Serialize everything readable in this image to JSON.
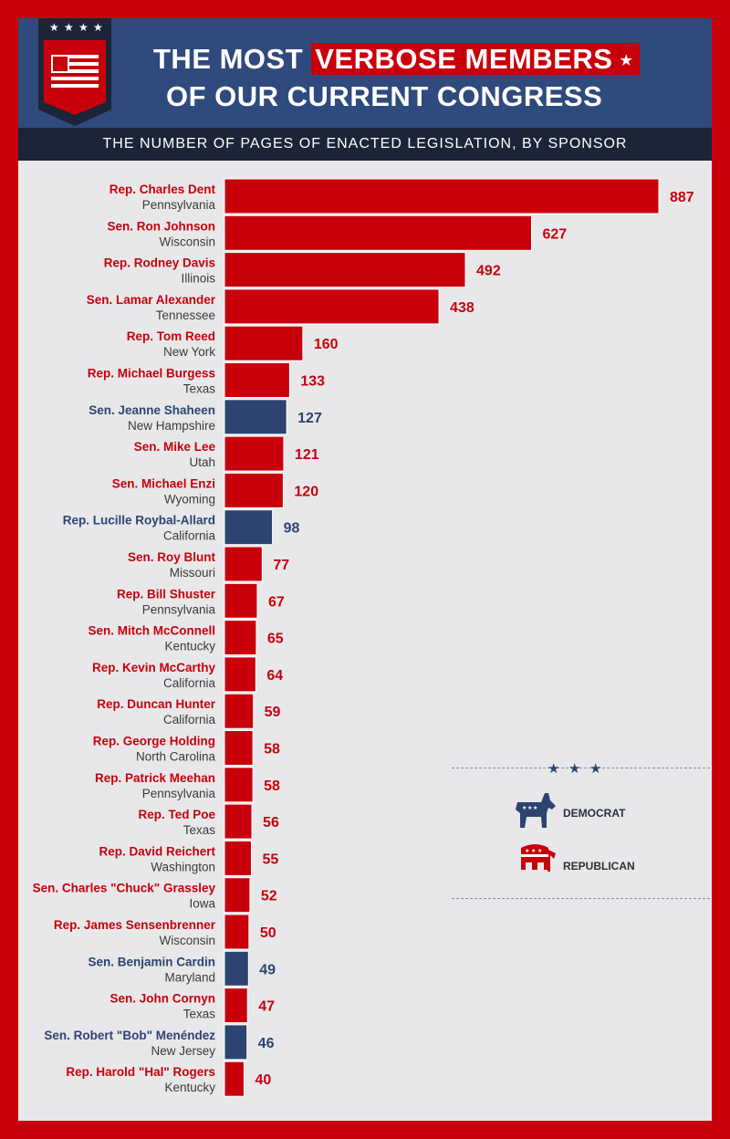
{
  "header": {
    "title_part1": "THE MOST",
    "title_highlight": "VERBOSE MEMBERS",
    "title_line2": "OF OUR CURRENT CONGRESS",
    "subtitle": "THE NUMBER OF PAGES OF ENACTED LEGISLATION, BY SPONSOR"
  },
  "legend": {
    "democrat_label": "DEMOCRAT",
    "republican_label": "REPUBLICAN",
    "democrat_icon": "donkey-icon",
    "republican_icon": "elephant-icon"
  },
  "colors": {
    "republican": "#c8000b",
    "democrat": "#2d4470",
    "background": "#e8e8ea",
    "header": "#2f4a7c"
  },
  "chart_data": {
    "type": "bar",
    "orientation": "horizontal",
    "title": "THE MOST VERBOSE MEMBERS OF OUR CURRENT CONGRESS",
    "subtitle": "THE NUMBER OF PAGES OF ENACTED LEGISLATION, BY SPONSOR",
    "xlim": [
      0,
      887
    ],
    "grid": false,
    "legend_position": "right",
    "categories": [
      {
        "name": "Rep. Charles Dent",
        "state": "Pennsylvania",
        "party": "republican"
      },
      {
        "name": "Sen. Ron Johnson",
        "state": "Wisconsin",
        "party": "republican"
      },
      {
        "name": "Rep. Rodney Davis",
        "state": "Illinois",
        "party": "republican"
      },
      {
        "name": "Sen. Lamar Alexander",
        "state": "Tennessee",
        "party": "republican"
      },
      {
        "name": "Rep. Tom Reed",
        "state": "New York",
        "party": "republican"
      },
      {
        "name": "Rep. Michael Burgess",
        "state": "Texas",
        "party": "republican"
      },
      {
        "name": "Sen. Jeanne Shaheen",
        "state": "New Hampshire",
        "party": "democrat"
      },
      {
        "name": "Sen. Mike Lee",
        "state": "Utah",
        "party": "republican"
      },
      {
        "name": "Sen. Michael Enzi",
        "state": "Wyoming",
        "party": "republican"
      },
      {
        "name": "Rep. Lucille Roybal-Allard",
        "state": "California",
        "party": "democrat"
      },
      {
        "name": "Sen. Roy Blunt",
        "state": "Missouri",
        "party": "republican"
      },
      {
        "name": "Rep. Bill Shuster",
        "state": "Pennsylvania",
        "party": "republican"
      },
      {
        "name": "Sen. Mitch McConnell",
        "state": "Kentucky",
        "party": "republican"
      },
      {
        "name": "Rep. Kevin McCarthy",
        "state": "California",
        "party": "republican"
      },
      {
        "name": "Rep. Duncan Hunter",
        "state": "California",
        "party": "republican"
      },
      {
        "name": "Rep. George Holding",
        "state": "North Carolina",
        "party": "republican"
      },
      {
        "name": "Rep. Patrick Meehan",
        "state": "Pennsylvania",
        "party": "republican"
      },
      {
        "name": "Rep. Ted Poe",
        "state": "Texas",
        "party": "republican"
      },
      {
        "name": "Rep. David Reichert",
        "state": "Washington",
        "party": "republican"
      },
      {
        "name": "Sen. Charles \"Chuck\" Grassley",
        "state": "Iowa",
        "party": "republican"
      },
      {
        "name": "Rep. James Sensenbrenner",
        "state": "Wisconsin",
        "party": "republican"
      },
      {
        "name": "Sen. Benjamin Cardin",
        "state": "Maryland",
        "party": "democrat"
      },
      {
        "name": "Sen. John Cornyn",
        "state": "Texas",
        "party": "republican"
      },
      {
        "name": "Sen. Robert \"Bob\" Menéndez",
        "state": "New Jersey",
        "party": "democrat"
      },
      {
        "name": "Rep. Harold \"Hal\" Rogers",
        "state": "Kentucky",
        "party": "republican"
      }
    ],
    "values": [
      887,
      627,
      492,
      438,
      160,
      133,
      127,
      121,
      120,
      98,
      77,
      67,
      65,
      64,
      59,
      58,
      58,
      56,
      55,
      52,
      50,
      49,
      47,
      46,
      40
    ]
  }
}
